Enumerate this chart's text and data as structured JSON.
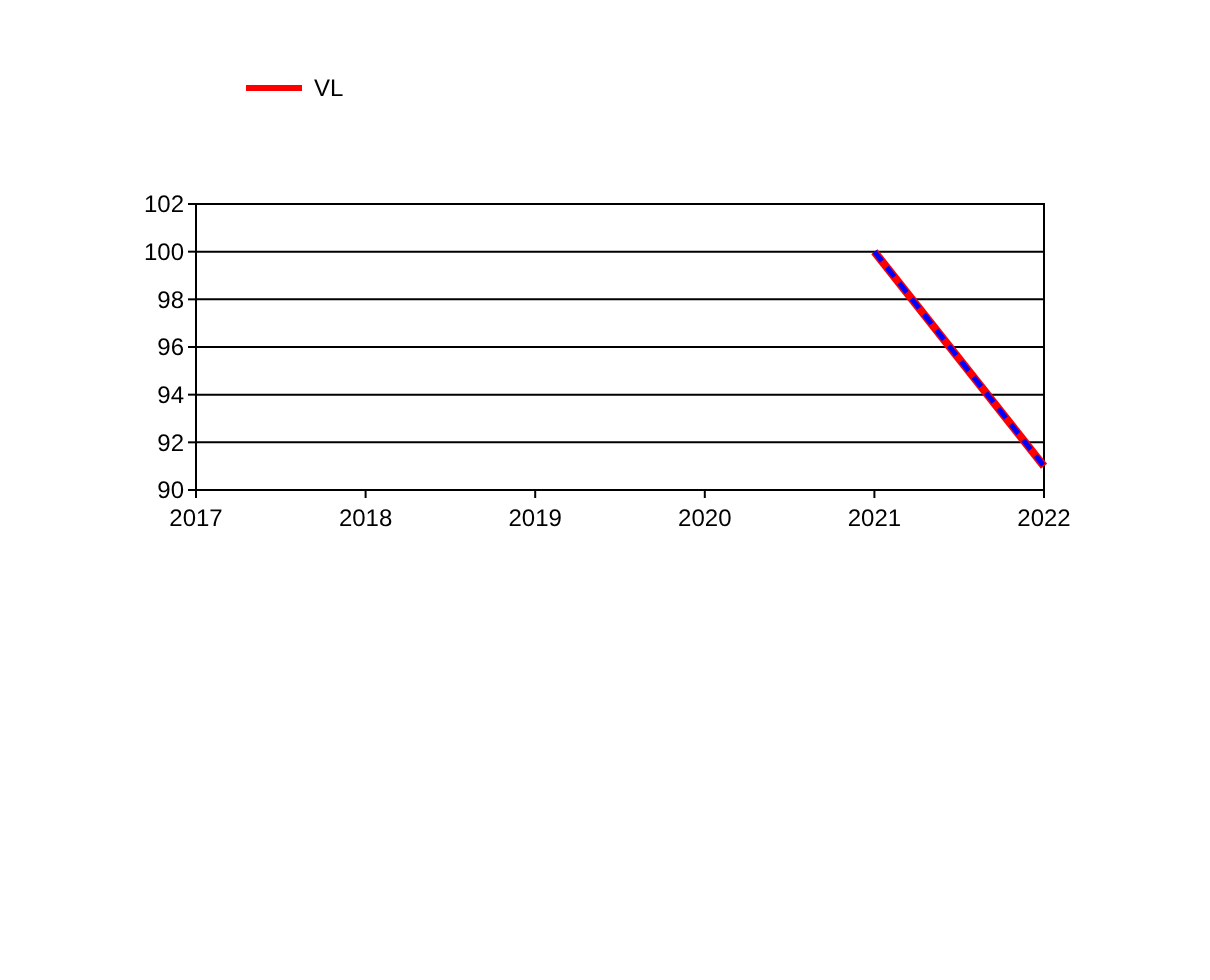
{
  "chart_data": {
    "type": "line",
    "x": [
      2021,
      2022
    ],
    "xlim": [
      2017,
      2022
    ],
    "xticks": [
      2017,
      2018,
      2019,
      2020,
      2021,
      2022
    ],
    "ylim": [
      90,
      102
    ],
    "yticks": [
      90,
      92,
      94,
      96,
      98,
      100,
      102
    ],
    "grid": "y",
    "legend": "top",
    "series": [
      {
        "name": "VL",
        "color": "#ff0000",
        "line_style": "solid",
        "values": [
          100,
          91
        ]
      },
      {
        "color": "#0000ff",
        "line_style": "dashed",
        "values": [
          100,
          91
        ]
      }
    ]
  }
}
